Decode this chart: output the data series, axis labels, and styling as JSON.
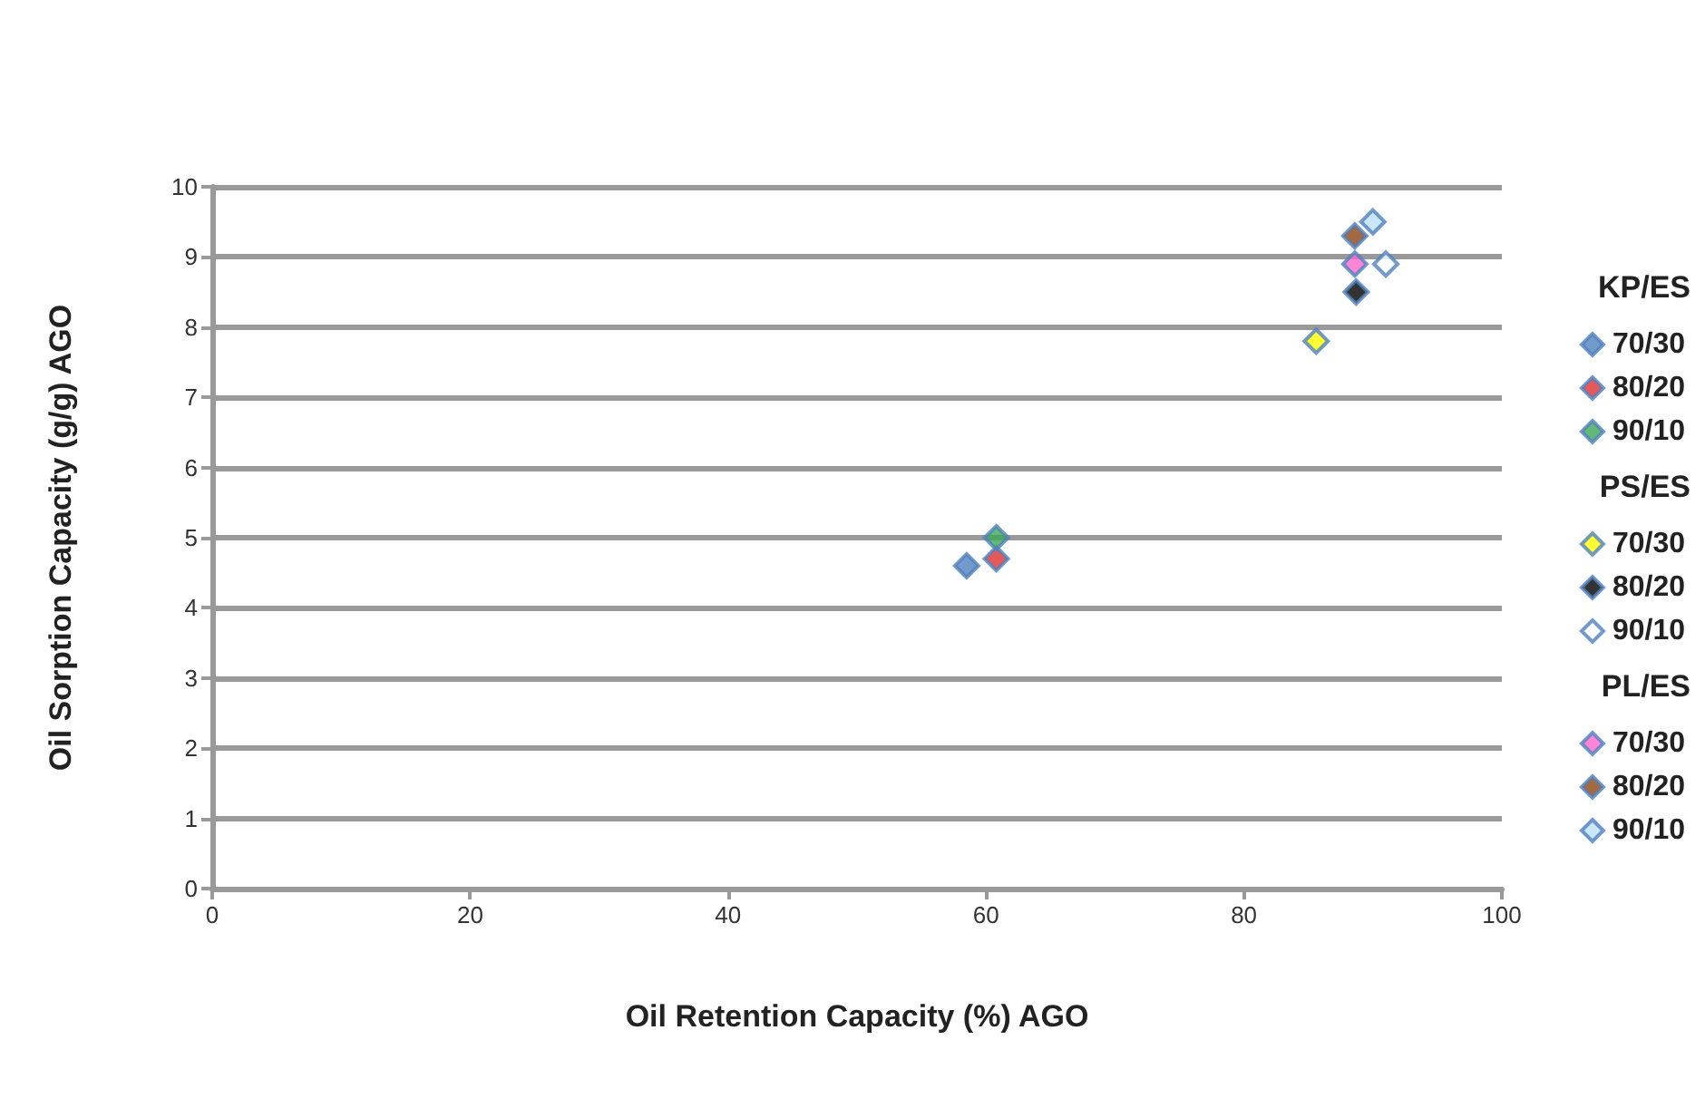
{
  "chart_data": {
    "type": "scatter",
    "xlabel": "Oil Retention Capacity (%) AGO",
    "ylabel": "Oil Sorption Capacity (g/g) AGO",
    "xlim": [
      0,
      100
    ],
    "xticks": [
      0,
      20,
      40,
      60,
      80,
      100
    ],
    "ylim": [
      0,
      10
    ],
    "yticks": [
      0,
      1,
      2,
      3,
      4,
      5,
      6,
      7,
      8,
      9,
      10
    ],
    "grid": "y",
    "legend": "right",
    "marker": "diamond",
    "annotations": [
      "KP/ES",
      "PS/ES",
      "PL/ES"
    ],
    "series": [
      {
        "name": "70/30",
        "color": "#4f81bd",
        "x": [
          58.5
        ],
        "values": [
          4.6
        ]
      },
      {
        "name": "80/20",
        "color": "#e03030",
        "x": [
          60.8
        ],
        "values": [
          4.7
        ]
      },
      {
        "name": "90/10",
        "color": "#3aa655",
        "x": [
          60.8
        ],
        "values": [
          5.0
        ]
      },
      {
        "name": "70/30",
        "color": "#ffff00",
        "x": [
          85.6
        ],
        "values": [
          7.8
        ]
      },
      {
        "name": "80/20",
        "color": "#000000",
        "x": [
          88.7
        ],
        "values": [
          8.5
        ]
      },
      {
        "name": "90/10",
        "color": "#ffffff",
        "x": [
          91.0
        ],
        "values": [
          8.9
        ]
      },
      {
        "name": "70/30",
        "color": "#ff66cc",
        "x": [
          88.6
        ],
        "values": [
          8.9
        ]
      },
      {
        "name": "80/20",
        "color": "#8b4513",
        "x": [
          88.6
        ],
        "values": [
          9.3
        ]
      },
      {
        "name": "90/10",
        "color": "#bde0f5",
        "x": [
          90.0
        ],
        "values": [
          9.5
        ]
      }
    ]
  }
}
